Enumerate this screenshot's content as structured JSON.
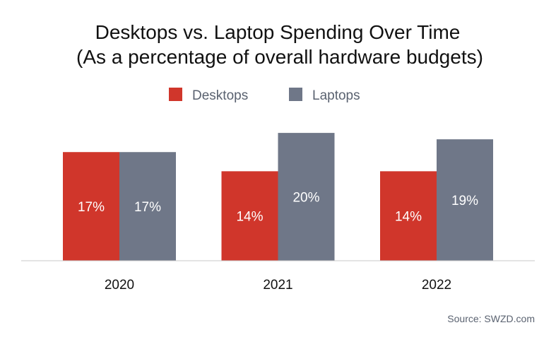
{
  "chart_data": {
    "type": "bar",
    "title": "Desktops vs. Laptop Spending Over Time",
    "subtitle": "(As a percentage of overall hardware budgets)",
    "categories": [
      "2020",
      "2021",
      "2022"
    ],
    "series": [
      {
        "name": "Desktops",
        "color": "#d0362b",
        "values": [
          17,
          14,
          14
        ],
        "labels": [
          "17%",
          "14%",
          "14%"
        ]
      },
      {
        "name": "Laptops",
        "color": "#6f7788",
        "values": [
          17,
          20,
          19
        ],
        "labels": [
          "17%",
          "20%",
          "19%"
        ]
      }
    ],
    "ylim": [
      0,
      22
    ],
    "grid": false,
    "legend_position": "top-center",
    "source": "Source: SWZD.com"
  }
}
